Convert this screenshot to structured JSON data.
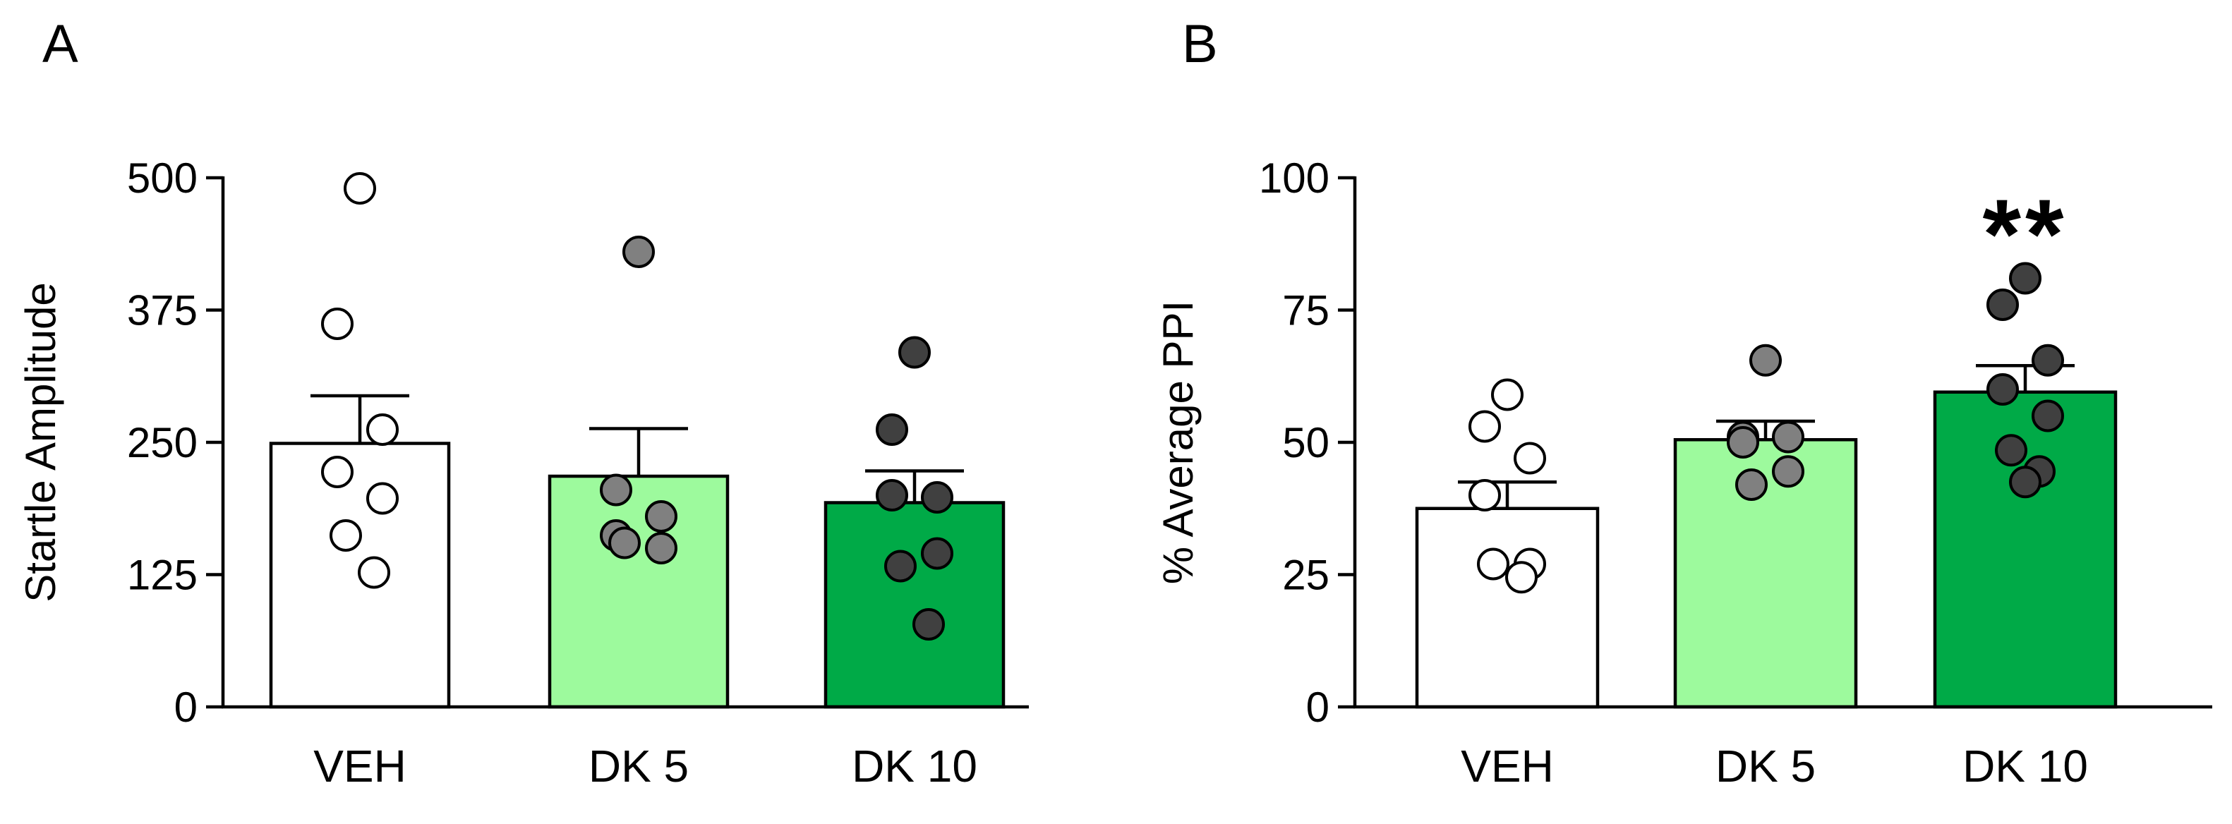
{
  "chart_data": [
    {
      "panel_label": "A",
      "type": "bar",
      "categories": [
        "VEH",
        "DK 5",
        "DK 10"
      ],
      "values": [
        249,
        218,
        193
      ],
      "sem": [
        45,
        45,
        30
      ],
      "bar_colors": [
        "#ffffff",
        "#9dfa9d",
        "#00aa47"
      ],
      "point_color": "#ffffff",
      "points": [
        [
          490,
          362,
          262,
          222,
          197,
          162,
          127
        ],
        [
          430,
          205,
          180,
          162,
          150,
          155
        ],
        [
          335,
          262,
          198,
          200,
          145,
          133,
          78
        ]
      ],
      "point_colors": [
        "#ffffff",
        "#808080",
        "#404040"
      ],
      "ylabel": "Startle Amplitude",
      "xlabel": "",
      "ylim": [
        0,
        500
      ],
      "yticks": [
        0,
        125,
        250,
        375,
        500
      ],
      "ytick_labels": [
        "0",
        "125",
        "250",
        "375",
        "500"
      ],
      "annotation": ""
    },
    {
      "panel_label": "B",
      "type": "bar",
      "categories": [
        "VEH",
        "DK 5",
        "DK 10"
      ],
      "values": [
        37.5,
        50.5,
        59.5
      ],
      "sem": [
        5,
        3.5,
        5
      ],
      "bar_colors": [
        "#ffffff",
        "#9dfa9d",
        "#00aa47"
      ],
      "points": [
        [
          59,
          53,
          47,
          40,
          27,
          27,
          24.5
        ],
        [
          65.5,
          51,
          51,
          50,
          44.5,
          42
        ],
        [
          81,
          76,
          65.5,
          60,
          55,
          48.5,
          44.5,
          42.5
        ]
      ],
      "point_colors": [
        "#ffffff",
        "#808080",
        "#404040"
      ],
      "ylabel": "% Average PPI",
      "xlabel": "",
      "ylim": [
        0,
        100
      ],
      "yticks": [
        0,
        25,
        50,
        75,
        100
      ],
      "ytick_labels": [
        "0",
        "25",
        "50",
        "75",
        "100"
      ],
      "annotation": "**"
    }
  ]
}
